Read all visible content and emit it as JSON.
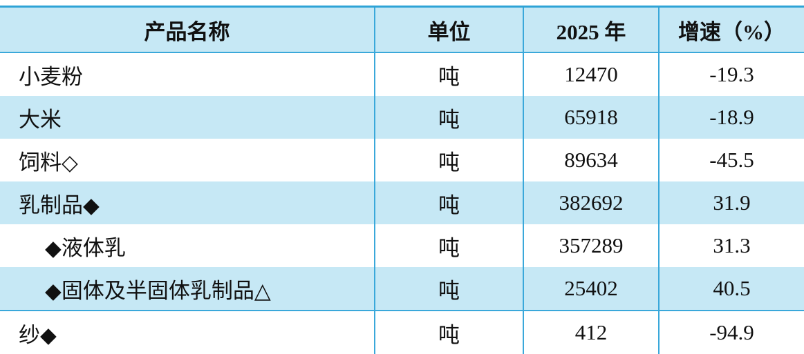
{
  "table": {
    "header": [
      "产品名称",
      "单位",
      "2025 年",
      "增速（%）"
    ],
    "rows": [
      [
        "小麦粉",
        "吨",
        12470,
        -19.3
      ],
      [
        "大米",
        "吨",
        65918,
        -18.9
      ],
      [
        "饲料◇",
        "吨",
        89634,
        -45.5
      ],
      [
        "乳制品◆",
        "吨",
        382692,
        31.9
      ],
      [
        "◆液体乳",
        "吨",
        357289,
        31.3
      ],
      [
        "◆固体及半固体乳制品△",
        "吨",
        25402,
        40.5
      ],
      [
        "纱◆",
        "吨",
        412,
        -94.9
      ]
    ]
  }
}
